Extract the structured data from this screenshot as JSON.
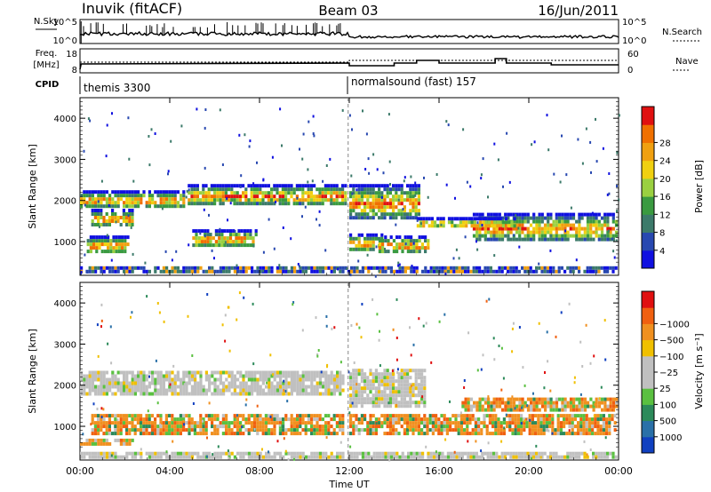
{
  "header": {
    "station": "Inuvik (fitACF)",
    "beam": "Beam 03",
    "date": "16/Jun/2011"
  },
  "top_panels": {
    "nsky": {
      "label": "N.Sky",
      "ticks": [
        "10^5",
        "10^0"
      ]
    },
    "nsearch": {
      "label": "N.Search",
      "ticks": [
        "10^5",
        "10^0"
      ]
    },
    "freq": {
      "label_line1": "Freq.",
      "label_line2": "[MHz]",
      "ticks": [
        "18",
        "8"
      ]
    },
    "nave": {
      "label": "Nave",
      "ticks": [
        "60",
        "0"
      ]
    },
    "cpid": {
      "label": "CPID",
      "segments": [
        "themis 3300",
        "normalsound (fast) 157"
      ]
    }
  },
  "chart_data": [
    {
      "type": "heatmap",
      "title": "",
      "xlabel": "",
      "ylabel": "Slant Range [km]",
      "yticks": [
        "1000",
        "2000",
        "3000",
        "4000"
      ],
      "ylim": [
        180,
        4500
      ],
      "xlim": [
        0,
        24
      ],
      "colorbar": {
        "label": "Power [dB]",
        "ticks": [
          "4",
          "8",
          "12",
          "16",
          "20",
          "24",
          "28"
        ],
        "colors": [
          "#1010e0",
          "#2848b0",
          "#3c7a6a",
          "#3a9a40",
          "#9ad040",
          "#f0d010",
          "#f0a010",
          "#f07000",
          "#e01010"
        ]
      },
      "bands": [
        {
          "t0": 0.0,
          "t1": 4.8,
          "r0": 1800,
          "r1": 2250
        },
        {
          "t0": 0.5,
          "t1": 2.5,
          "r0": 1350,
          "r1": 1800
        },
        {
          "t0": 4.8,
          "t1": 11.9,
          "r0": 1800,
          "r1": 2400
        },
        {
          "t0": 0.3,
          "t1": 2.3,
          "r0": 650,
          "r1": 1150
        },
        {
          "t0": 5.0,
          "t1": 8.0,
          "r0": 800,
          "r1": 1300
        },
        {
          "t0": 12.0,
          "t1": 15.2,
          "r0": 1500,
          "r1": 2400
        },
        {
          "t0": 12.0,
          "t1": 13.6,
          "r0": 700,
          "r1": 1200
        },
        {
          "t0": 13.3,
          "t1": 15.6,
          "r0": 700,
          "r1": 1150
        },
        {
          "t0": 17.5,
          "t1": 24.0,
          "r0": 1000,
          "r1": 1700
        },
        {
          "t0": 15.0,
          "t1": 19.5,
          "r0": 1300,
          "r1": 1600
        },
        {
          "t0": 0.0,
          "t1": 24.0,
          "r0": 200,
          "r1": 400
        }
      ]
    },
    {
      "type": "heatmap",
      "title": "",
      "xlabel": "Time UT",
      "ylabel": "Slant Range [km]",
      "yticks": [
        "1000",
        "2000",
        "3000",
        "4000"
      ],
      "xticks": [
        "00:00",
        "04:00",
        "08:00",
        "12:00",
        "16:00",
        "20:00",
        "00:00"
      ],
      "ylim": [
        180,
        4500
      ],
      "xlim": [
        0,
        24
      ],
      "colorbar": {
        "label": "Velocity [m s⁻¹]",
        "ticks": [
          "1000",
          "500",
          "100",
          "25",
          "−25",
          "−100",
          "−500",
          "−1000"
        ],
        "colors": [
          "#1040c0",
          "#2a70a8",
          "#2c8a5a",
          "#5ac040",
          "#c0c0c0",
          "#c0c0c0",
          "#f0c000",
          "#f09020",
          "#f06010",
          "#e01010"
        ]
      },
      "bands": [
        {
          "t0": 0.0,
          "t1": 11.9,
          "r0": 1700,
          "r1": 2350
        },
        {
          "t0": 0.5,
          "t1": 11.8,
          "r0": 750,
          "r1": 1300
        },
        {
          "t0": 0.0,
          "t1": 2.5,
          "r0": 450,
          "r1": 700
        },
        {
          "t0": 12.0,
          "t1": 15.5,
          "r0": 1400,
          "r1": 2400
        },
        {
          "t0": 12.0,
          "t1": 24.0,
          "r0": 700,
          "r1": 1300
        },
        {
          "t0": 17.0,
          "t1": 24.0,
          "r0": 1300,
          "r1": 1700
        },
        {
          "t0": 0.0,
          "t1": 24.0,
          "r0": 200,
          "r1": 380
        }
      ]
    }
  ]
}
